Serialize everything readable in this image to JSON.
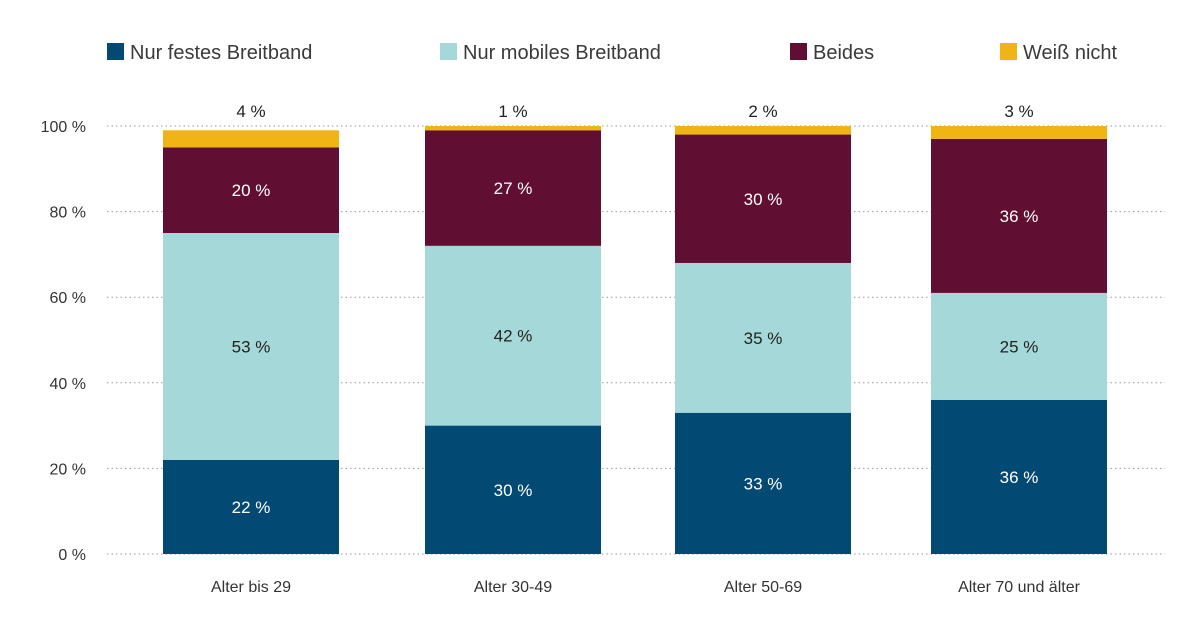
{
  "chart_data": {
    "type": "bar",
    "stacked": true,
    "title": "",
    "xlabel": "",
    "ylabel": "",
    "ylim": [
      0,
      100
    ],
    "y_ticks": [
      0,
      20,
      40,
      60,
      80,
      100
    ],
    "y_tick_labels": [
      "0 %",
      "20 %",
      "40 %",
      "60 %",
      "80 %",
      "100 %"
    ],
    "grid": "horizontal-dotted",
    "legend_position": "top-left",
    "categories": [
      "Alter bis 29",
      "Alter 30-49",
      "Alter 50-69",
      "Alter 70 und älter"
    ],
    "series": [
      {
        "name": "Nur festes Breitband",
        "color": "#024a74",
        "label_color": "#ffffff",
        "values": [
          22,
          30,
          33,
          36
        ],
        "labels": [
          "22 %",
          "30 %",
          "33 %",
          "36 %"
        ]
      },
      {
        "name": "Nur mobiles Breitband",
        "color": "#a5d8d9",
        "label_color": "#222222",
        "values": [
          53,
          42,
          35,
          25
        ],
        "labels": [
          "53 %",
          "42 %",
          "35 %",
          "25 %"
        ]
      },
      {
        "name": "Beides",
        "color": "#600f33",
        "label_color": "#ffffff",
        "values": [
          20,
          27,
          30,
          36
        ],
        "labels": [
          "20 %",
          "27 %",
          "30 %",
          "36 %"
        ]
      },
      {
        "name": "Weiß nicht",
        "color": "#f0b515",
        "label_color": "#222222",
        "values": [
          4,
          1,
          2,
          3
        ],
        "labels": [
          "4 %",
          "1 %",
          "2 %",
          "3 %"
        ],
        "label_position": "above"
      }
    ]
  }
}
